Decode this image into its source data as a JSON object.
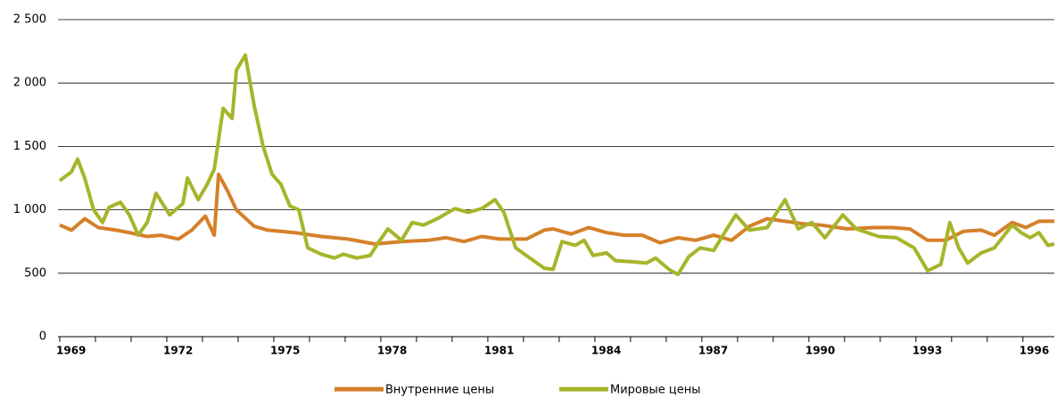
{
  "chart_data": {
    "type": "line",
    "xlim": [
      1969,
      1996.88
    ],
    "xticks": [
      1969,
      1972,
      1975,
      1978,
      1981,
      1984,
      1987,
      1990,
      1993,
      1996
    ],
    "xminorticks": [
      1970,
      1971,
      1973,
      1974,
      1976,
      1977,
      1979,
      1980,
      1982,
      1983,
      1985,
      1986,
      1988,
      1989,
      1991,
      1992,
      1994,
      1995
    ],
    "ylim": [
      0,
      2500
    ],
    "yticks": [
      0,
      500,
      {
        "value": 1000,
        "label": "1 000"
      },
      {
        "value": 1500,
        "label": "1 500"
      },
      {
        "value": 2000,
        "label": "2 000"
      },
      {
        "value": 2500,
        "label": "2 500"
      }
    ],
    "grid": true,
    "legend": "bottom",
    "series": [
      {
        "name": "Внутренние цены",
        "color": "#d5802a",
        "x": [
          1969,
          1969.33,
          1969.7,
          1970.08,
          1970.58,
          1970.95,
          1971.45,
          1971.83,
          1972.33,
          1972.7,
          1973.08,
          1973.33,
          1973.45,
          1973.7,
          1973.95,
          1974.45,
          1974.83,
          1975.58,
          1976.33,
          1977.08,
          1977.83,
          1978.58,
          1979.33,
          1979.83,
          1980.33,
          1980.83,
          1981.33,
          1982.08,
          1982.58,
          1982.83,
          1983.33,
          1983.83,
          1984.33,
          1984.83,
          1985.33,
          1985.83,
          1986.33,
          1986.83,
          1987.33,
          1987.83,
          1988.33,
          1988.83,
          1989.33,
          1989.83,
          1990.33,
          1991.08,
          1991.83,
          1992.33,
          1992.83,
          1993.33,
          1993.83,
          1994.33,
          1994.83,
          1995.2,
          1995.7,
          1996.08,
          1996.45,
          1996.88
        ],
        "values": [
          880,
          840,
          930,
          860,
          840,
          820,
          790,
          800,
          770,
          840,
          950,
          800,
          1280,
          1150,
          1000,
          870,
          840,
          820,
          790,
          770,
          730,
          750,
          760,
          780,
          750,
          790,
          770,
          770,
          840,
          850,
          810,
          860,
          820,
          800,
          800,
          740,
          780,
          760,
          800,
          760,
          870,
          930,
          910,
          890,
          880,
          850,
          860,
          860,
          850,
          760,
          760,
          830,
          840,
          800,
          900,
          860,
          910,
          910
        ]
      },
      {
        "name": "Мировые цены",
        "color": "#a6b52a",
        "x": [
          1969,
          1969.33,
          1969.5,
          1969.7,
          1969.95,
          1970.2,
          1970.38,
          1970.7,
          1970.95,
          1971.2,
          1971.45,
          1971.7,
          1972.08,
          1972.45,
          1972.58,
          1972.88,
          1973.13,
          1973.33,
          1973.58,
          1973.83,
          1973.95,
          1974.2,
          1974.45,
          1974.7,
          1974.95,
          1975.2,
          1975.45,
          1975.7,
          1975.95,
          1976.33,
          1976.7,
          1976.95,
          1977.33,
          1977.7,
          1977.95,
          1978.2,
          1978.58,
          1978.88,
          1979.2,
          1979.58,
          1980.08,
          1980.45,
          1980.83,
          1981.2,
          1981.45,
          1981.78,
          1982.08,
          1982.58,
          1982.83,
          1983.08,
          1983.45,
          1983.7,
          1983.95,
          1984.33,
          1984.58,
          1985.08,
          1985.45,
          1985.7,
          1986.08,
          1986.33,
          1986.63,
          1986.95,
          1987.33,
          1987.7,
          1987.95,
          1988.33,
          1988.83,
          1989.33,
          1989.7,
          1990.08,
          1990.45,
          1990.95,
          1991.33,
          1991.95,
          1992.45,
          1992.95,
          1993.33,
          1993.7,
          1993.95,
          1994.2,
          1994.45,
          1994.83,
          1995.2,
          1995.7,
          1995.95,
          1996.2,
          1996.45,
          1996.7,
          1996.88
        ],
        "values": [
          1230,
          1300,
          1400,
          1250,
          1000,
          900,
          1020,
          1060,
          960,
          800,
          900,
          1130,
          960,
          1050,
          1250,
          1080,
          1200,
          1320,
          1800,
          1720,
          2100,
          2220,
          1820,
          1500,
          1280,
          1200,
          1030,
          1000,
          700,
          650,
          620,
          650,
          620,
          640,
          750,
          850,
          760,
          900,
          880,
          930,
          1010,
          980,
          1010,
          1080,
          980,
          700,
          640,
          540,
          530,
          750,
          720,
          760,
          640,
          660,
          600,
          590,
          580,
          620,
          530,
          490,
          630,
          700,
          680,
          850,
          960,
          840,
          860,
          1080,
          850,
          900,
          780,
          960,
          850,
          790,
          780,
          700,
          520,
          570,
          900,
          700,
          580,
          660,
          700,
          880,
          820,
          780,
          820,
          720,
          730
        ]
      }
    ]
  }
}
